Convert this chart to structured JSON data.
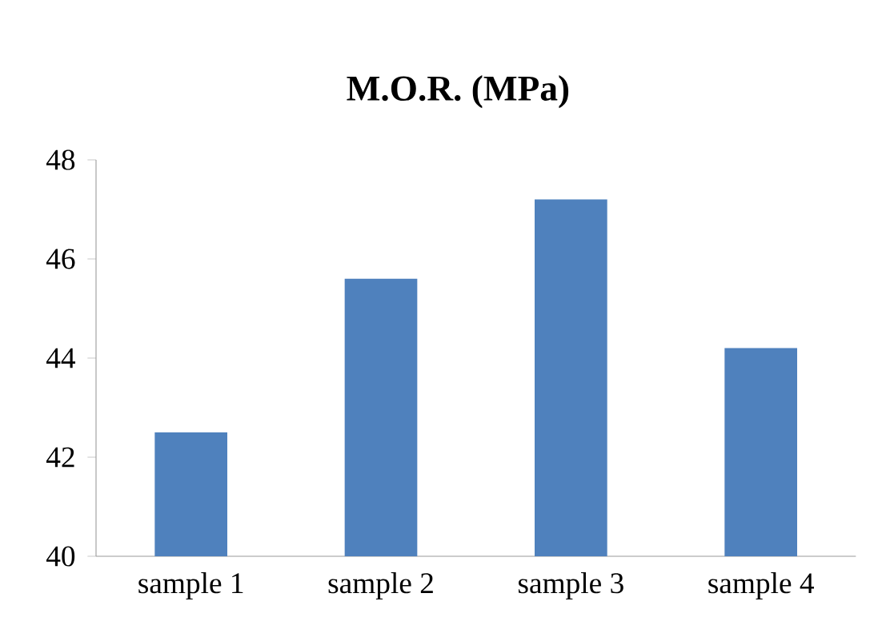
{
  "chart_data": {
    "type": "bar",
    "title": "M.O.R. (MPa)",
    "categories": [
      "sample 1",
      "sample 2",
      "sample 3",
      "sample 4"
    ],
    "values": [
      42.5,
      45.6,
      47.2,
      44.2
    ],
    "color": "#4f81bd",
    "ylim": [
      40,
      48
    ],
    "yticks": [
      40,
      42,
      44,
      46,
      48
    ]
  }
}
